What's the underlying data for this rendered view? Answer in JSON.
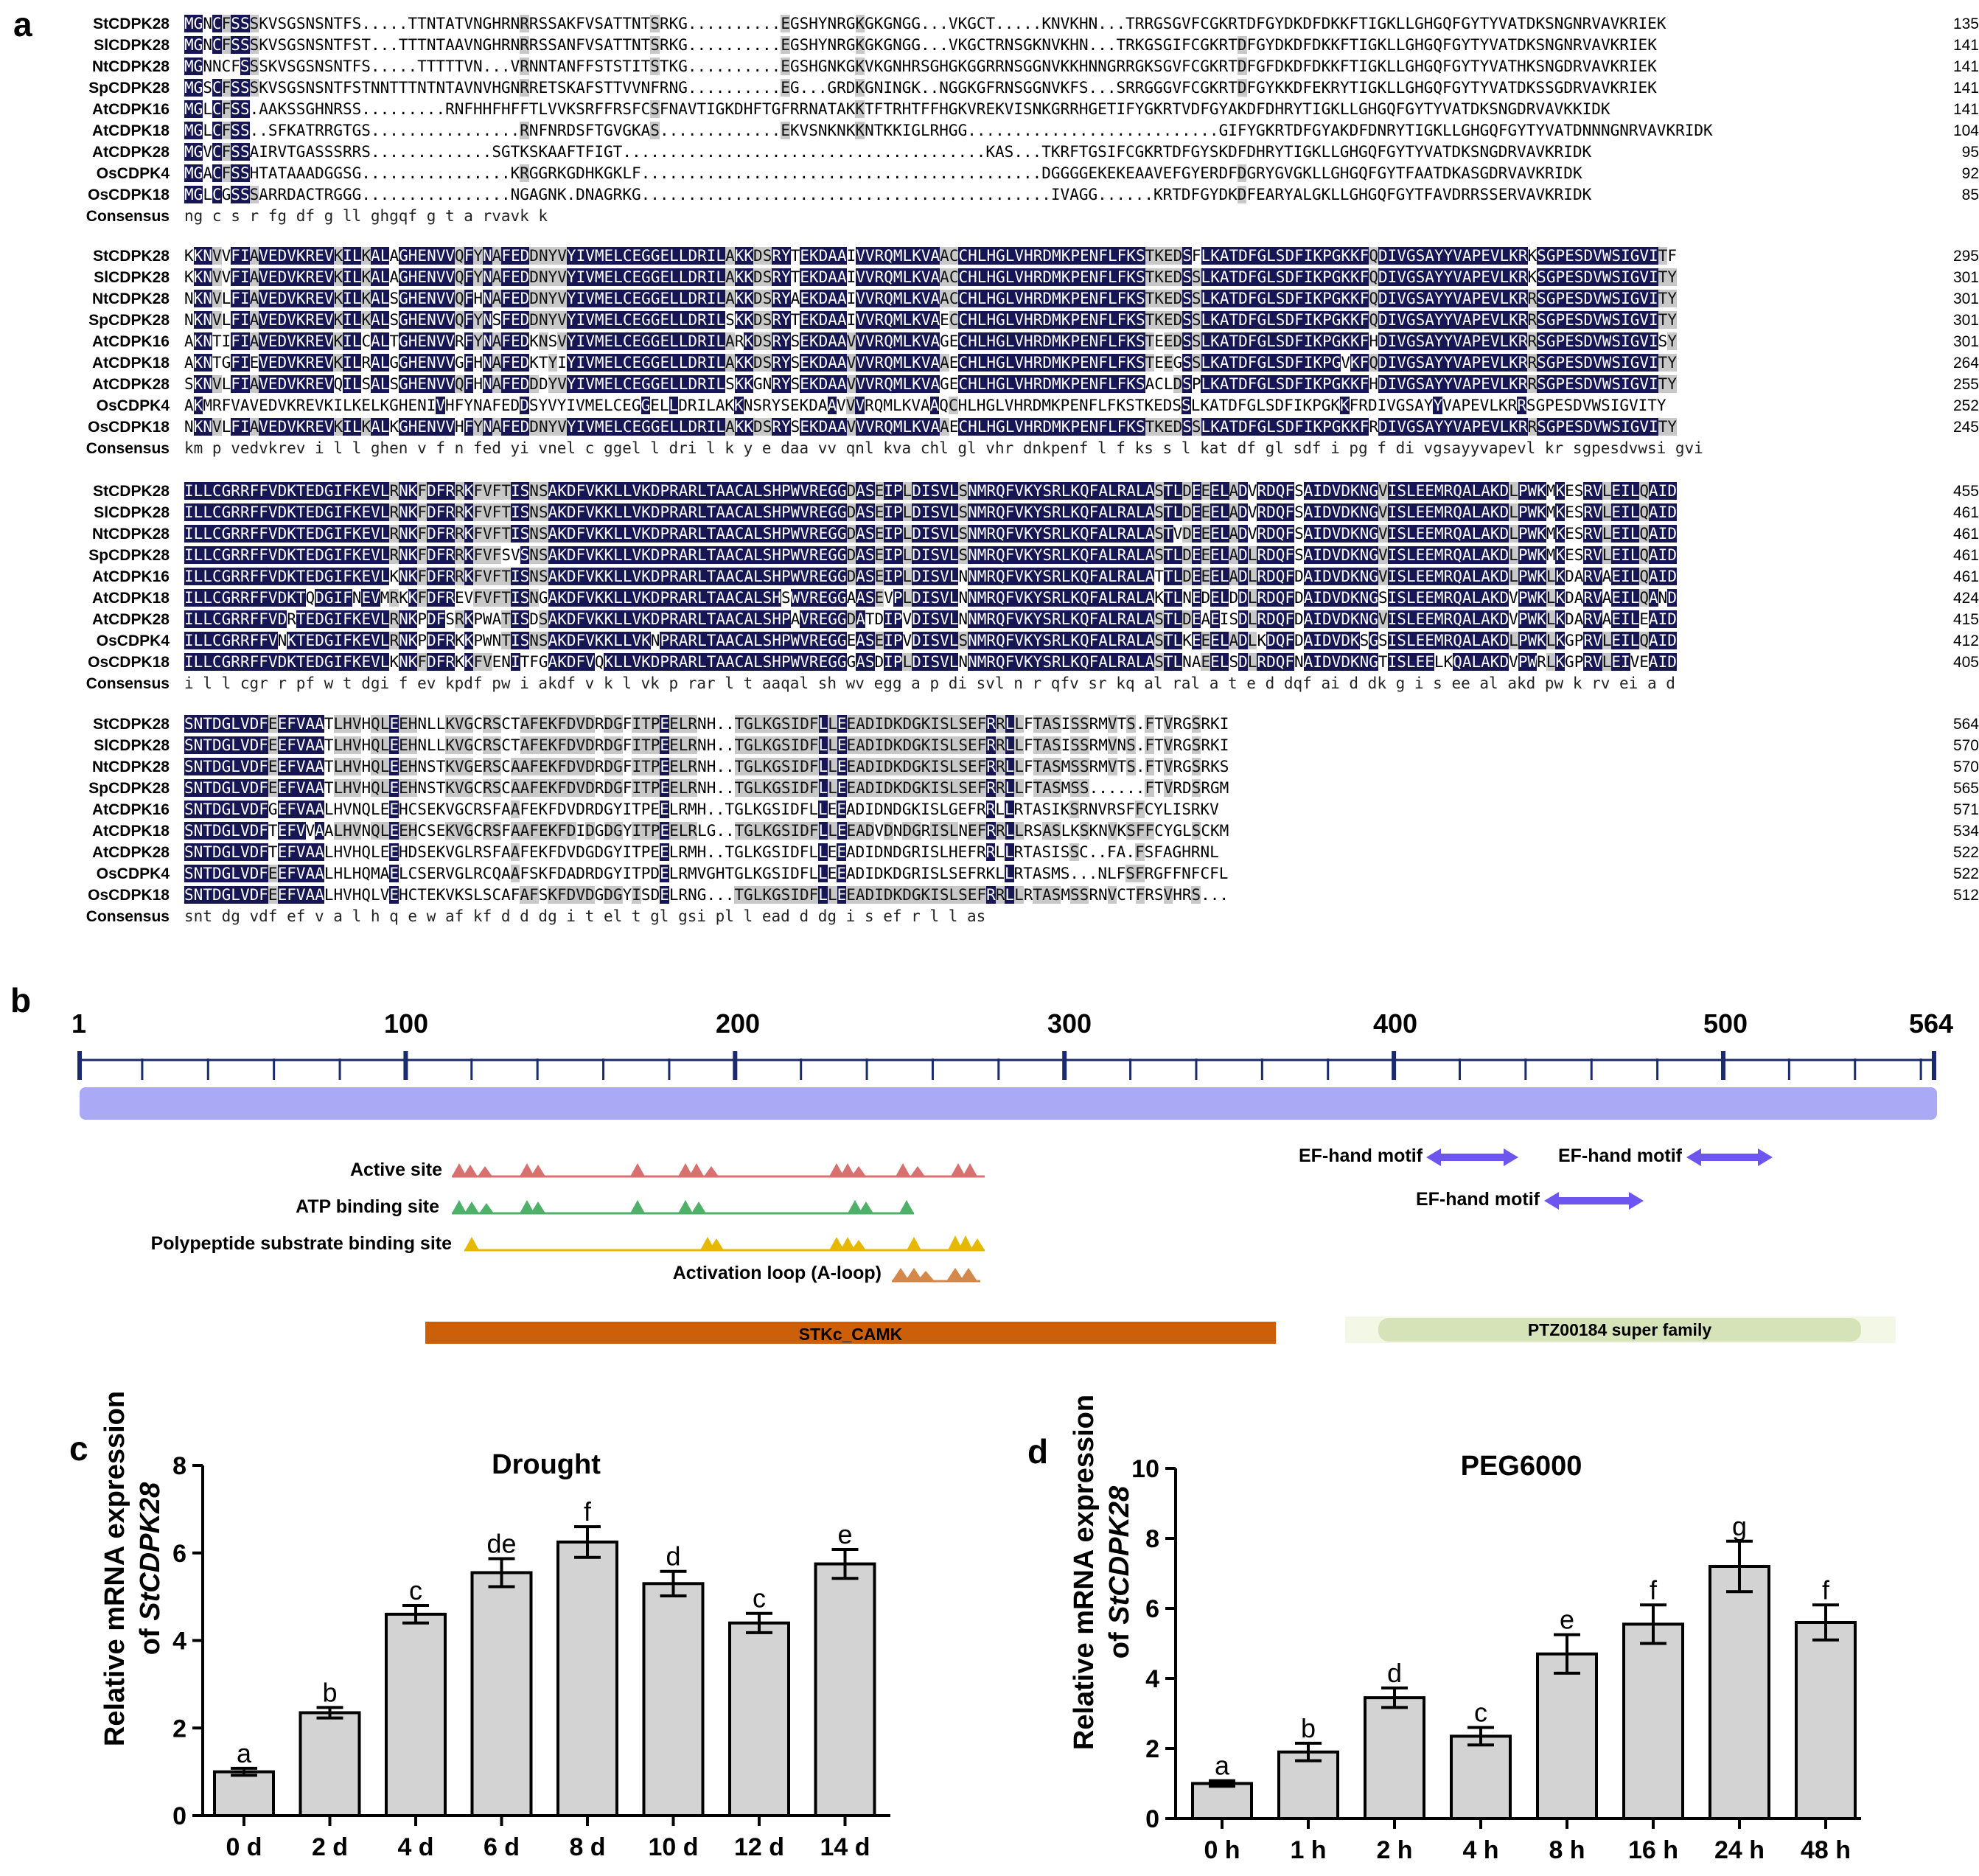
{
  "panel_labels": {
    "a": "a",
    "b": "b",
    "c": "c",
    "d": "d"
  },
  "alignment": {
    "blocks": [
      {
        "rows": [
          {
            "name": "StCDPK28",
            "seq": "MGNCFSSSKVSGSNSNTFS.....TTNTATVNGHRNRRSSAKFVSATTNTSRKG..........EGSHYNRGKGKGNGG...VKGCT.....KNVKHN...TRRGSGVFCGKRTDFGYDKDFDKKFTIGKLLGHGQFGYTYVATDKSNGNRVAVKRIEK",
            "end": "135"
          },
          {
            "name": "SlCDPK28",
            "seq": "MGNCFSSSKVSGSNSNTFST...TTTNTAAVNGHRNRRSSANFVSATTNTSRKG..........EGSHYNRGKGKGNGG...VKGCTRNSGKNVKHN...TRKGSGIFCGKRTDFGYDKDFDKKFTIGKLLGHGQFGYTYVATDKSNGNRVAVKRIEK",
            "end": "141"
          },
          {
            "name": "NtCDPK28",
            "seq": "MGNNCFSSSKVSGSNSNTFS.....TTTTTVN...VRNNTANFFSTSTITSTKG..........EGSHGNKGKVKGNHRSGHGKGGRRNSGGNVKKHNNGRRGKSGVFCGKRTDFGFDKDFDKKFTIGKLLGHGQFGYTYVATHKSNGDRVAVKRIEK",
            "end": "141"
          },
          {
            "name": "SpCDPK28",
            "seq": "MGSCFSSSKVSGSNSNTFSTNNTTTNTNTAVNVHGNRRETSKAFSTTVVNFRNG..........EG...GRDKGNINGK..NGGKGFRNSGGNVKFS...SRRGGGVFCGKRTDFGYKKDFEKRYTIGKLLGHGQFGYTYVATDKSSGDRVAVKRIEK",
            "end": "141"
          },
          {
            "name": "AtCDPK16",
            "seq": "MGLCFSS.AAKSSGHNRSS.........RNFHHFHFFTLVVKSRFFRSFCSFNAVTIGKDHFTGFRRNATAKKTFTRHTFFHGKVREKVISNKGRRHGETIFYGKRTVDFGYAKDFDHRYTIGKLLGHGQFGYTYVATDKSNGDRVAVKKIDK",
            "end": "141"
          },
          {
            "name": "AtCDPK18",
            "seq": "MGLCFSS..SFKATRRGTGS................RNFNRDSFTGVGKAS.............EKVSNKNKKNTKKIGLRHGG...........................GIFYGKRTDFGYAKDFDNRYTIGKLLGHGQFGYTYVATDNNNGNRVAVKRIDK",
            "end": "104"
          },
          {
            "name": "AtCDPK28",
            "seq": "MGVCFSSAIRVTGASSSRRS.............SGTKSKAAFTFIGT.......................................KAS...TKRFTGSIFCGKRTDFGYSKDFDHRYTIGKLLGHGQFGYTYVATDKSNGDRVAVKRIDK",
            "end": "95"
          },
          {
            "name": "OsCDPK4",
            "seq": "MGACFSSHTATAAADGGSG................KRGGRKGDHKGKLF...........................................DGGGGEKEKEAAVEFGYERDFDGRYGVGKLLGHGQFGYTFAATDKASGDRVAVKRIDK",
            "end": "92"
          },
          {
            "name": "OsCDPK18",
            "seq": "MGLCGSSSARRDACTRGGG................NGAGNK.DNAGRKG............................................IVAGG......KRTDFGYDKDFEARYALGKLLGHGQFGYTFAVDRRSSERVAVKRIDK",
            "end": "85"
          }
        ],
        "consensus": "ng   c  s                                                                                                                                  r  fg    df      g ll ghgqf g t    a           rvavk    k"
      },
      {
        "rows": [
          {
            "name": "StCDPK28",
            "seq": "KKNVVFIAVEDVKREVKILKALAGHENVVQFYNAFEDDNYVYIVMELCEGGELLDRILAKKDSRYTEKDAAIVVRQMLKVAACCHLHGLVHRDMKPENFLFKSTKEDSFLKATDFGLSDFIKPGKKFQDIVGSAYYVAPEVLKRKSGPESDVWSIGVITF",
            "end": "295"
          },
          {
            "name": "SlCDPK28",
            "seq": "KKNVVFIAVEDVKREVKILKALAGHENVVQFYNAFEDDNYVYIVMELCEGGELLDRILAKKDSRYTEKDAAIVVRQMLKVAACCHLHGLVHRDMKPENFLFKSTKEDSSLKATDFGLSDFIKPGKKFQDIVGSAYYVAPEVLKRKSGPESDVWSIGVITY",
            "end": "301"
          },
          {
            "name": "NtCDPK28",
            "seq": "NKNVLFIAVEDVKREVKILKALSGHENVVQFHNAFEDDNYVYIVMELCEGGELLDRILAKKDSRYAEKDAAIVVRQMLKVAACCHLHGLVHRDMKPENFLFKSTKEDSSLKATDFGLSDFIKPGKKFQDIVGSAYYVAPEVLKRRSGPESDVWSIGVITY",
            "end": "301"
          },
          {
            "name": "SpCDPK28",
            "seq": "NKNVLFIAVEDVKREVKILKALSGHENVVQFYNSFEDDNYVYIVMELCEGGELLDRILSKKDSRYTEKDAAIVVRQMLKVAECCHLHGLVHRDMKPENFLFKSTKEDSSLKATDFGLSDFIKPGKKFQDIVGSAYYVAPEVLKRRSGPESDVWSIGVITY",
            "end": "301"
          },
          {
            "name": "AtCDPK16",
            "seq": "AKNTIFIAVEDVKREVKILCALTGHENVVRFYNAFEDKNSVYIVMELCEGGELLDRILARKDSRYSEKDAAVVVRQMLKVAGECHLHGLVHRDMKPENFLFKSTEEDSSLKATDFGLSDFIKPGKKFHDIVGSAYYVAPEVLKRRSGPESDVWSIGVISY",
            "end": "301"
          },
          {
            "name": "AtCDPK18",
            "seq": "AKNTGFIEVEDVKREVKILRALGGHENVVGFHNAFEDKTYIYIVMELCEGGELLDRILAKKDSRYSEKDAAVVVRQMLKVAAECHLHGLVHRDMKPENFLFKSTEEGSSLKATDFGLSDFIKPGVKFQDIVGSAYYVAPEVLKRRSGPESDVWSIGVITY",
            "end": "264"
          },
          {
            "name": "AtCDPK28",
            "seq": "SKNVLFIAVEDVKREVQILSALSGHENVVQFHNAFEDDDYVYIVMELCEGGELLDRILSKKGNRYSEKDAAVVVRQMLKVAGECHLHGLVHRDMKPENFLFKSACLDSPLKATDFGLSDFIKPGKKFHDIVGSAYYVAPEVLKRRSGPESDVWSIGVITY",
            "end": "255"
          },
          {
            "name": "OsCDPK4",
            "seq": "AKMRFVAVEDVKREVKILKELKGHENIVHFYNAFEDDSYVYIVMELCEGGELLDRILAKKNSRYSEKDAAVVVRQMLKVAAQCHLHGLVHRDMKPENFLFKSTKEDSSLKATDFGLSDFIKPGKKFRDIVGSAYYVAPEVLKRRSGPESDVWSIGVITY",
            "end": "252"
          },
          {
            "name": "OsCDPK18",
            "seq": "NKNVLFIAVEDVKREVKILKALKGHENVVHFYNAFEDDNYVYIVMELCEGGELLDRILAKKDSRYSEKDAAVVVRQMLKVAAECHLHGLVHRDMKPENFLFKSTKEDSSLKATDFGLSDFIKPGKKFRDIVGSAYYVAPEVLKRRSGPESDVWSIGVITY",
            "end": "245"
          }
        ],
        "consensus": "  km  p   vedvkrev  i l    l   ghen  v  f   n fed       yi vnel c   ggel l dri l    k       y   e  daa   vv   qnl kva     chl    gl vhr dnkpenf l f ks        s  l kat df gl sdf i    pg     f     di vgsayyvapevl kr   sgpesdvwsi gvi"
      },
      {
        "rows": [
          {
            "name": "StCDPK28",
            "seq": "ILLCGRRFFVDKTEDGIFKEVLRNKFDFRRKFVFTISNSAKDFVKKLLVKDPRARLTAACALSHPWVREGGDASEIPLDISVLSNMRQFVKYSRLKQFALRALASTLDEEELADVRDQFSAIDVDKNGVISLEEMRQALAKDLPWKMKESRVLEILQAID",
            "end": "455"
          },
          {
            "name": "SlCDPK28",
            "seq": "ILLCGRRFFVDKTEDGIFKEVLRNKFDFRRKFVFTISNSAKDFVKKLLVKDPRARLTAACALSHPWVREGGDASEIPLDISVLSNMRQFVKYSRLKQFALRALASTLDEEELADVRDQFSAIDVDKNGVISLEEMRQALAKDLPWKMKESRVLEILQAID",
            "end": "461"
          },
          {
            "name": "NtCDPK28",
            "seq": "ILLCGRRFFVDKTEDGIFKEVLRNKFDFRRKFVFTISNSAKDFVKKLLVKDPRARLTAACALSHPWVREGGDASEIPLDISVLSNMRQFVKYSRLKQFALRALASTVDEEELADVRDQFSAIDVDKNGVISLEEMRQALAKDLPWKMKESRVLEILQAID",
            "end": "461"
          },
          {
            "name": "SpCDPK28",
            "seq": "ILLCGRRFFVDKTEDGIFKEVLRNKFDFRRKFVFSVSNSAKDFVKKLLVKDPRARLTAACALSHPWVREGGDASEIPLDISVLSNMRQFVKYSRLKQFALRALASTLDEEELADLRDQFSAIDVDKNGVISLEEMRQALAKDLPWKMKESRVLEILQAID",
            "end": "461"
          },
          {
            "name": "AtCDPK16",
            "seq": "ILLCGRRFFVDKTEDGIFKEVLKNKFDFRRKFVFTISNSAKDFVKKLLVKDPRARLTAACALSHPWVREGGDASEIPLDISVLNNMRQFVKYSRLKQFALRALATTLDEEELADLRDQFDAIDVDKNGVISLEEMRQALAKDLPWKLKDARVAEILQAID",
            "end": "461"
          },
          {
            "name": "AtCDPK18",
            "seq": "ILLCGRRFFVDKTQDGIFNEVMRKKFDFREVFVFTISNGAKDFVKKLLVKDPRARLTAACALSHSWVREGGAASEVPLDISVLNNMRQFVKYSRLKQFALRALAKTLNEDELDDLRDQFDAIDVDKNGSISLEEMRQALAKDVPWKLKDARVAEILQAND",
            "end": "424"
          },
          {
            "name": "AtCDPK28",
            "seq": "ILLCGRRFFVDRTEDGIFKEVLRNKPDFSRKPWATISDSAKDFVKKLLVKDPRARLTAACALSHPAVREGGDATDIPVDISVLNNMRQFVKYSRLKQFALRALASTLDEAEISDLRDQFDAIDVDKNGVISLEEMRQALAKDVPWKLKDARVAEILEAID",
            "end": "415"
          },
          {
            "name": "OsCDPK4",
            "seq": "ILLCGRRFFVNKTEDGIFKEVLRNKPDFRKKPWNTISNSAKDFVKKLLVKNPRARLTAACALSHPWVREGGEASEIPVDISVLSNMRQFVKYSRLKQFALRALASTLKEEELADLKDQFDAIDVDKSGSISLEEMRQALAKDLPWKLKGPRVLEILQAID",
            "end": "412"
          },
          {
            "name": "OsCDPK18",
            "seq": "ILLCGRRFFVDKTEDGIFKEVLKNKFDFRKKFVENITFGAKDFVQKLLVKDPRARLTAACALSHPWVREGGGASDIPLDISVLNNMRQFVKYSRLKQFALRALASTLNAEELSDLRDQFNAIDVDKNGTISLEELKQALAKDVPWRLKGPRVLEIVEAID",
            "end": "405"
          }
        ],
        "consensus": "i l l cgr r pf w   t  dgi f   ev      kpdf        pw   i       akdf v  k  l vk  p rar l t aaqal sh  wv    egg  a      p  di svl    n  r qfv      sr   kq  al ral a t          e   d    dqf   ai d  dk  g  i s  ee        al akd  pw     k     rv  ei      a  d"
      },
      {
        "rows": [
          {
            "name": "StCDPK28",
            "seq": "SNTDGLVDFEEFVAATLHVHQLEEHNLLKVGCRSCTAFEKFDVDRDGFITPEELRNH..TGLKGSIDFLLEEADIDKDGKISLSEFRRLLFTASISSRMVTS.FTVRGSRKI",
            "end": "564"
          },
          {
            "name": "SlCDPK28",
            "seq": "SNTDGLVDFEEFVAATLHVHQLEEHNLLKVGCRSCTAFEKFDVDRDGFITPEELRNH..TGLKGSIDFLLEEADIDKDGKISLSEFRRLLFTASISSRMVNS.FTVRGSRKI",
            "end": "570"
          },
          {
            "name": "NtCDPK28",
            "seq": "SNTDGLVDFEEFVAATLHVHQLEEHNSTKVGERSCAAFEKFDVDRDGFITPEELRNH..TGLKGSIDFLLEEADIDKDGKISLSEFRRLLFTASMSSRMVTS.FTVRGSRKS",
            "end": "570"
          },
          {
            "name": "SpCDPK28",
            "seq": "SNTDGLVDFEEFVAATLHVHQLEEHNSTKVGCRSCAAFEKFDVDRDGFITPEELRNH..TGLKGSIDFLLEEADIDKDGKISLSEFRRLLFTASMSS......FTVRDSRGM",
            "end": "565"
          },
          {
            "name": "AtCDPK16",
            "seq": "SNTDGLVDFGEFVAALHVNQLEEHCSEKVGCRSFAAFEKFDVDRDGYITPEELRMH..TGLKGSIDFLLEEADIDNDGKISLGEFRRLLRTASIKSRNVRSFFCYLISRKV",
            "end": "571"
          },
          {
            "name": "AtCDPK18",
            "seq": "SNTDGLVDFTEFVVAALHVNQLEEHCSEKVGCRSFAAFEKFDIDGDGYITPEELRLG..TGLKGSIDFLLEEADVDNDGRISLNEFRRLLRSASLKSKNVKSFFCYGLSCKM",
            "end": "534"
          },
          {
            "name": "AtCDPK28",
            "seq": "SNTDGLVDFTEFVAALHVHQLEEHDSEKVGLRSFAAFEKFDVDGDGYITPEELRMH..TGLKGSIDFLLEEADIDNDGRISLHEFRRLLRTASISSC..FA.FSFAGHRNL",
            "end": "522"
          },
          {
            "name": "OsCDPK4",
            "seq": "SNTDGLVDFEEFVAALHLHQMAELCSERVGLRCQAAFSKFDADRDGYITPDELRMVGHTGLKGSIDFLLEEADIDKDGRISLSEFRKLLRTASMS...NLFSFRGFFNFCFL",
            "end": "522"
          },
          {
            "name": "OsCDPK18",
            "seq": "SNTDGLVDFEEFVAALHVHQLVEHCTEKVKSLSCAFAFSKFDVDGDGYISDELRNG...TGLKGSIDFLLEEADIDKDGKISLSEFRRLLRTASMSSRNVCTFRSVHRS...",
            "end": "512"
          }
        ],
        "consensus": "snt dg  vdf   ef v   a  l h    q    e           w            af  kf d  d  dg  i t     el              t gl   gsi   pl l   ead  d  dg  i s   ef r   l l      as"
      }
    ]
  },
  "domain_map": {
    "ruler_ticks": [
      "1",
      "100",
      "200",
      "300",
      "400",
      "500",
      "564"
    ],
    "features": [
      {
        "label": "Active site",
        "color": "#c0504d"
      },
      {
        "label": "ATP binding site",
        "color": "#3aa55a"
      },
      {
        "label": "Polypeptide substrate binding site",
        "color": "#e6b800"
      },
      {
        "label": "Activation loop (A-loop)",
        "color": "#d4884a"
      }
    ],
    "motifs": [
      {
        "label": "EF-hand motif"
      },
      {
        "label": "EF-hand motif"
      },
      {
        "label": "EF-hand motif"
      }
    ],
    "domains": [
      {
        "label": "STKc_CAMK",
        "color": "#cc5f0a"
      },
      {
        "label": "PTZ00184 super family",
        "color": "#d6e3b8"
      }
    ],
    "bar_color": "#a9a9f5",
    "motif_color": "#6d55f0"
  },
  "chart_data": [
    {
      "type": "bar",
      "title": "Drought",
      "ylabel_line1": "Relative mRNA expression",
      "ylabel_line2_prefix": "of ",
      "ylabel_gene": "StCDPK28",
      "categories": [
        "0 d",
        "2 d",
        "4 d",
        "6 d",
        "8 d",
        "10 d",
        "12 d",
        "14 d"
      ],
      "values": [
        1.0,
        2.35,
        4.6,
        5.55,
        6.25,
        5.3,
        4.4,
        5.75
      ],
      "errors": [
        0.08,
        0.12,
        0.2,
        0.32,
        0.35,
        0.28,
        0.22,
        0.33
      ],
      "letters": [
        "a",
        "b",
        "c",
        "de",
        "f",
        "d",
        "c",
        "e"
      ],
      "ylim": [
        0,
        8
      ],
      "yticks": [
        0,
        2,
        4,
        6,
        8
      ],
      "bar_color": "#d3d3d3"
    },
    {
      "type": "bar",
      "title": "PEG6000",
      "ylabel_line1": "Relative mRNA expression",
      "ylabel_line2_prefix": "of ",
      "ylabel_gene": "StCDPK28",
      "categories": [
        "0 h",
        "1 h",
        "2 h",
        "4 h",
        "8 h",
        "16 h",
        "24 h",
        "48 h"
      ],
      "values": [
        1.0,
        1.9,
        3.45,
        2.35,
        4.7,
        5.55,
        7.2,
        5.6
      ],
      "errors": [
        0.08,
        0.25,
        0.28,
        0.25,
        0.55,
        0.55,
        0.72,
        0.5
      ],
      "letters": [
        "a",
        "b",
        "d",
        "c",
        "e",
        "f",
        "g",
        "f"
      ],
      "ylim": [
        0,
        10
      ],
      "yticks": [
        0,
        2,
        4,
        6,
        8,
        10
      ],
      "bar_color": "#d3d3d3"
    }
  ]
}
